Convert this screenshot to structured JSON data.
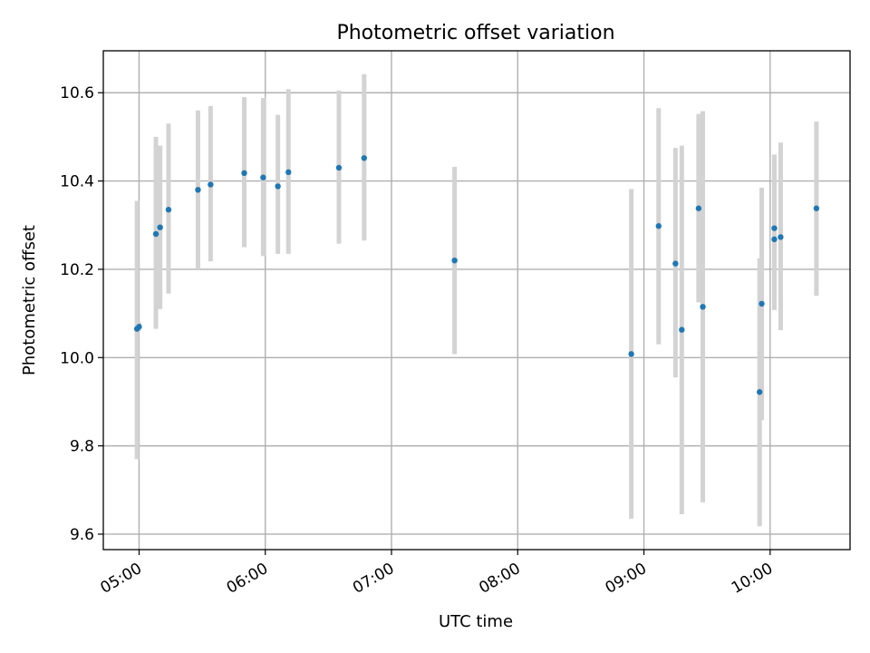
{
  "chart_data": {
    "type": "scatter",
    "title": "Photometric offset variation",
    "xlabel": "UTC time",
    "ylabel": "Photometric offset",
    "xlim": [
      "04:43",
      "10:38"
    ],
    "ylim": [
      9.565,
      10.695
    ],
    "x_ticks": [
      "05:00",
      "06:00",
      "07:00",
      "08:00",
      "09:00",
      "10:00"
    ],
    "y_ticks": [
      "9.6",
      "9.8",
      "10.0",
      "10.2",
      "10.4",
      "10.6"
    ],
    "grid": true,
    "marker_color": "#1f77b4",
    "errorbar_color": "#d3d3d3",
    "points": [
      {
        "x": "04:59",
        "y": 10.065,
        "low": 9.77,
        "high": 10.355
      },
      {
        "x": "05:00",
        "y": 10.07,
        "low": 10.06,
        "high": 10.08
      },
      {
        "x": "05:08",
        "y": 10.28,
        "low": 10.065,
        "high": 10.5
      },
      {
        "x": "05:10",
        "y": 10.295,
        "low": 10.11,
        "high": 10.48
      },
      {
        "x": "05:14",
        "y": 10.335,
        "low": 10.145,
        "high": 10.53
      },
      {
        "x": "05:28",
        "y": 10.38,
        "low": 10.2,
        "high": 10.56
      },
      {
        "x": "05:34",
        "y": 10.392,
        "low": 10.218,
        "high": 10.57
      },
      {
        "x": "05:50",
        "y": 10.418,
        "low": 10.25,
        "high": 10.59
      },
      {
        "x": "05:59",
        "y": 10.408,
        "low": 10.23,
        "high": 10.588
      },
      {
        "x": "06:06",
        "y": 10.388,
        "low": 10.235,
        "high": 10.55
      },
      {
        "x": "06:11",
        "y": 10.42,
        "low": 10.235,
        "high": 10.608
      },
      {
        "x": "06:35",
        "y": 10.43,
        "low": 10.258,
        "high": 10.605
      },
      {
        "x": "06:47",
        "y": 10.452,
        "low": 10.265,
        "high": 10.642
      },
      {
        "x": "07:30",
        "y": 10.22,
        "low": 10.008,
        "high": 10.432
      },
      {
        "x": "08:54",
        "y": 10.008,
        "low": 9.635,
        "high": 10.382
      },
      {
        "x": "09:07",
        "y": 10.298,
        "low": 10.03,
        "high": 10.565
      },
      {
        "x": "09:15",
        "y": 10.213,
        "low": 9.955,
        "high": 10.475
      },
      {
        "x": "09:18",
        "y": 10.063,
        "low": 9.645,
        "high": 10.48
      },
      {
        "x": "09:26",
        "y": 10.338,
        "low": 10.125,
        "high": 10.552
      },
      {
        "x": "09:28",
        "y": 10.115,
        "low": 9.672,
        "high": 10.558
      },
      {
        "x": "09:55",
        "y": 9.922,
        "low": 9.618,
        "high": 10.225
      },
      {
        "x": "09:56",
        "y": 10.122,
        "low": 9.858,
        "high": 10.385
      },
      {
        "x": "10:02",
        "y": 10.268,
        "low": 10.108,
        "high": 10.46
      },
      {
        "x": "10:02",
        "y": 10.293,
        "low": 10.13,
        "high": 10.458
      },
      {
        "x": "10:05",
        "y": 10.273,
        "low": 10.062,
        "high": 10.487
      },
      {
        "x": "10:22",
        "y": 10.338,
        "low": 10.14,
        "high": 10.535
      }
    ]
  }
}
